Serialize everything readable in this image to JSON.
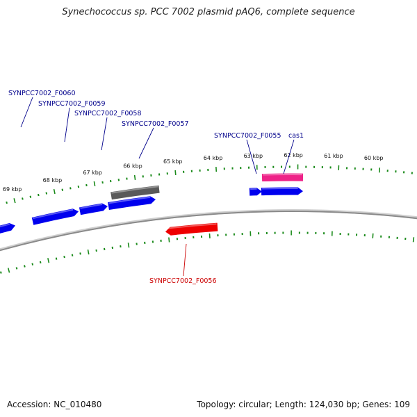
{
  "title": "Synechococcus sp. PCC 7002 plasmid pAQ6, complete sequence",
  "footer": {
    "accession": "Accession: NC_010480",
    "topology": "Topology: circular; Length: 124,030 bp; Genes: 109"
  },
  "colors": {
    "backbone": "#8a8a8a",
    "tick": "#1a8a1a",
    "forward_gene": "#0000ee",
    "pseudo_gene": "#5a5a5a",
    "cas_gene": "#ee2288",
    "reverse_gene": "#ee0000",
    "forward_label": "#00008b",
    "reverse_label": "#cc0000"
  },
  "scale": {
    "outer_labels": [
      "69 kbp",
      "68 kbp",
      "67 kbp",
      "66 kbp",
      "65 kbp",
      "64 kbp",
      "63 kbp",
      "62 kbp",
      "61 kbp",
      "60 kbp"
    ]
  },
  "genes": [
    {
      "id": "SYNPCC7002_F0060",
      "label": "SYNPCC7002_F0060",
      "color": "forward_gene",
      "strand": "+"
    },
    {
      "id": "SYNPCC7002_F0059",
      "label": "SYNPCC7002_F0059",
      "color": "forward_gene",
      "strand": "+"
    },
    {
      "id": "SYNPCC7002_F0058",
      "label": "SYNPCC7002_F0058",
      "color": "forward_gene",
      "strand": "+"
    },
    {
      "id": "SYNPCC7002_F0057",
      "label": "SYNPCC7002_F0057",
      "color": "pseudo_gene",
      "strand": "+"
    },
    {
      "id": "SYNPCC7002_F0055",
      "label": "SYNPCC7002_F0055",
      "color": "forward_gene",
      "strand": "+"
    },
    {
      "id": "cas1",
      "label": "cas1",
      "color": "cas_gene",
      "strand": "+"
    },
    {
      "id": "SYNPCC7002_F0056",
      "label": "SYNPCC7002_F0056",
      "color": "reverse_gene",
      "strand": "-"
    }
  ]
}
